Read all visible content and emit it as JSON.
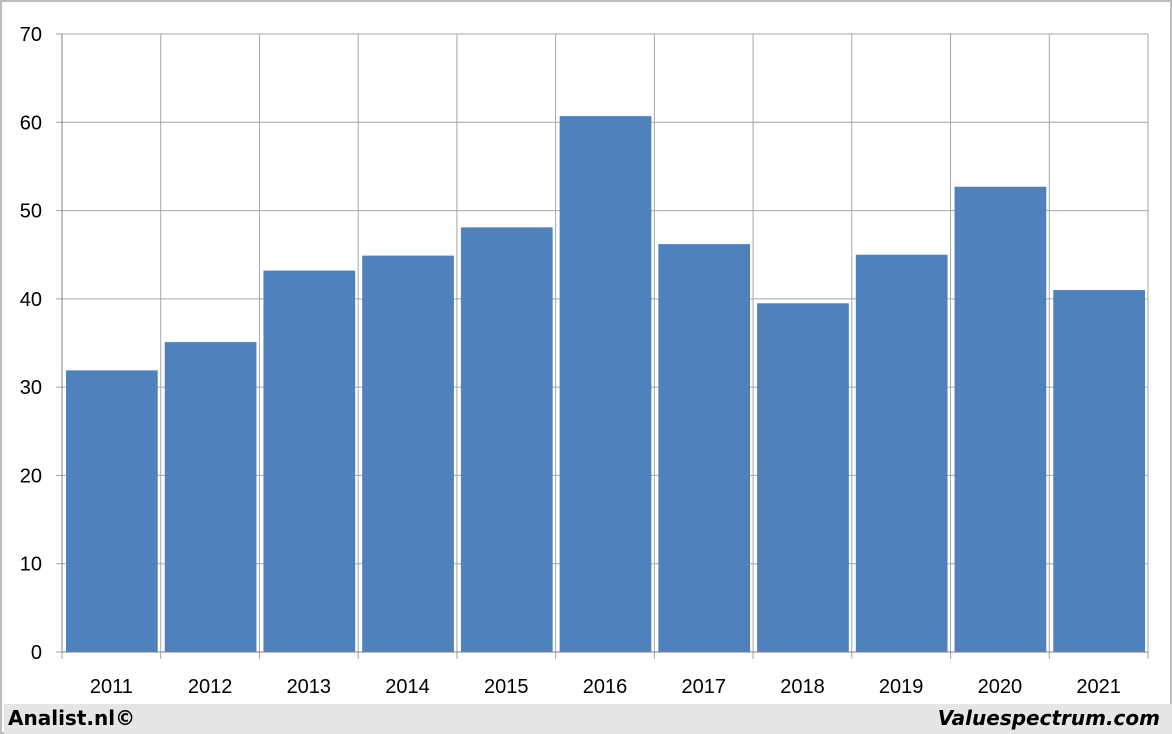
{
  "chart_data": {
    "type": "bar",
    "categories": [
      "2011",
      "2012",
      "2013",
      "2014",
      "2015",
      "2016",
      "2017",
      "2018",
      "2019",
      "2020",
      "2021"
    ],
    "values": [
      31.9,
      35.1,
      43.2,
      44.9,
      48.1,
      60.7,
      46.2,
      39.5,
      45.0,
      52.7,
      41.0
    ],
    "title": "",
    "xlabel": "",
    "ylabel": "",
    "ylim": [
      0,
      70
    ],
    "yticks": [
      0,
      10,
      20,
      30,
      40,
      50,
      60,
      70
    ],
    "grid": true,
    "bar_color": "#4f81bd",
    "grid_color": "#a6a6a6"
  },
  "footer": {
    "left": "Analist.nl©",
    "right": "Valuespectrum.com"
  }
}
